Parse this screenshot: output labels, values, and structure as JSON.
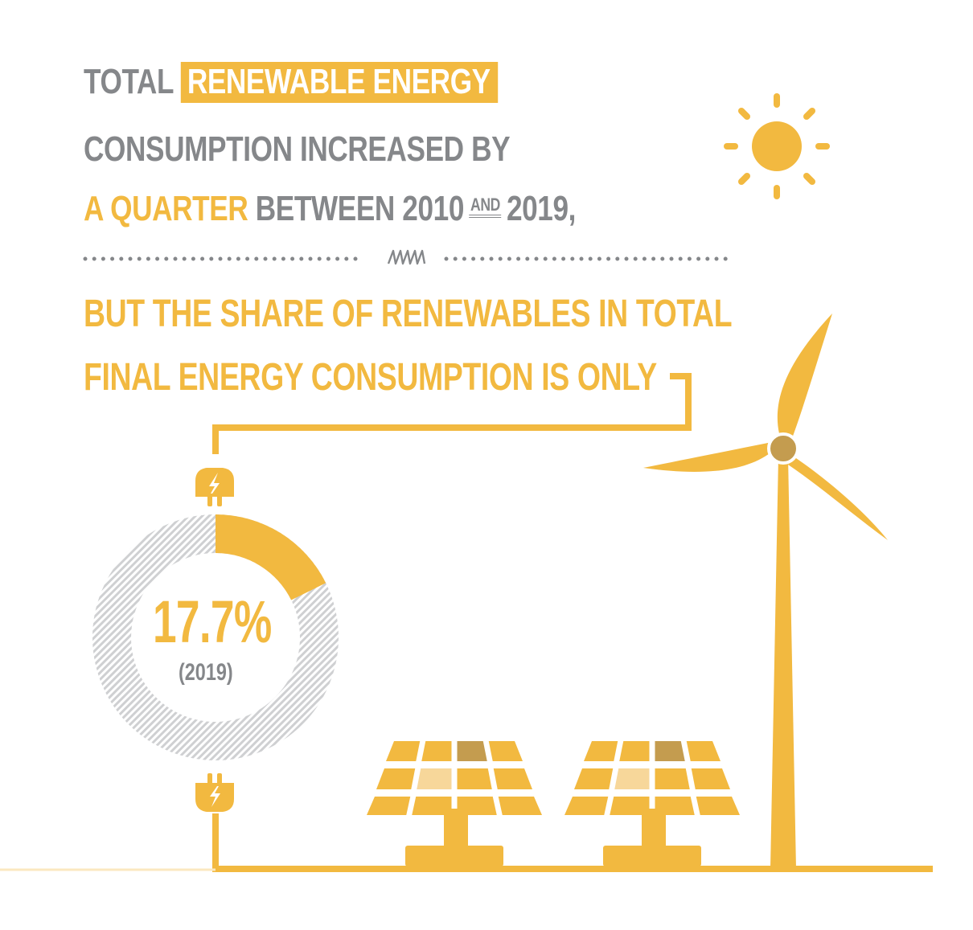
{
  "headline": {
    "line1_gray": "TOTAL",
    "line1_highlight": "RENEWABLE ENERGY",
    "line2": "CONSUMPTION INCREASED BY",
    "line3_yellow": "A QUARTER",
    "line3_gray1": "BETWEEN 2010",
    "line3_and": "AND",
    "line3_gray2": "2019,",
    "line4": "BUT THE SHARE OF RENEWABLES IN TOTAL",
    "line5": "FINAL ENERGY CONSUMPTION IS ONLY"
  },
  "donut": {
    "share_percent": 17.7,
    "value_label": "17.7%",
    "year_label": "(2019)"
  },
  "colors": {
    "accent": "#f2b940",
    "text_gray": "#85878a",
    "hatch": "#cfd0d2",
    "hub": "#c49c4f",
    "panel_dark": "#c49c4f",
    "panel_light": "#f7d79a"
  },
  "icons": [
    "sun-icon",
    "zigzag-divider-icon",
    "plug-icon",
    "wind-turbine-icon",
    "solar-panel-icon"
  ]
}
